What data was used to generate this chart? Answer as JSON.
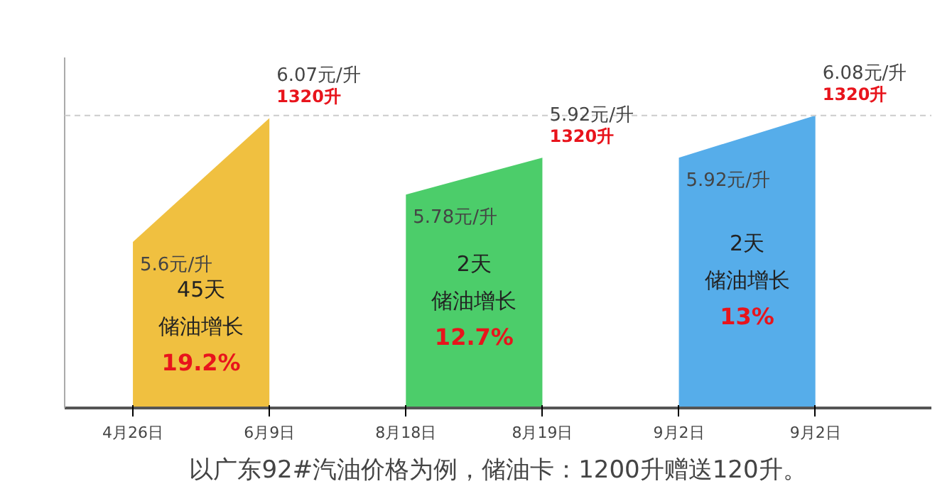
{
  "chart_data": {
    "type": "area",
    "categories": [
      "4月26日",
      "6月9日",
      "8月18日",
      "8月19日",
      "9月2日",
      "9月2日"
    ],
    "series": [
      {
        "color": "#f0c040",
        "values": [
          5.6,
          6.07,
          null,
          null,
          null,
          null
        ],
        "value_labels": [
          "5.6元/升",
          "6.07元/升\n1320升",
          null,
          null,
          null,
          null
        ]
      },
      {
        "color": "#4ccd6a",
        "values": [
          null,
          null,
          5.78,
          5.92,
          null,
          null
        ],
        "value_labels": [
          null,
          null,
          "5.78元/升",
          "5.92元/升\n1320升",
          null,
          null
        ]
      },
      {
        "color": "#56adea",
        "values": [
          null,
          null,
          null,
          null,
          5.92,
          6.08
        ],
        "value_labels": [
          null,
          null,
          null,
          null,
          "5.92元/升",
          "6.08元/升\n1320升"
        ]
      }
    ],
    "ylim": [
      4.97,
      6.3
    ],
    "tick_labels": "x",
    "grid": false,
    "ref_lines": [
      {
        "axis": "y",
        "value": 6.08,
        "color": "#cccccc",
        "line_style": "dashed"
      }
    ],
    "annotations": [
      "45天",
      "储油增长",
      "19.2%",
      "2天",
      "储油增长",
      "12.7%",
      "2天",
      "储油增长",
      "13%",
      "以广东92#汽油价格为例，储油卡：1200升赠送120升。"
    ]
  }
}
